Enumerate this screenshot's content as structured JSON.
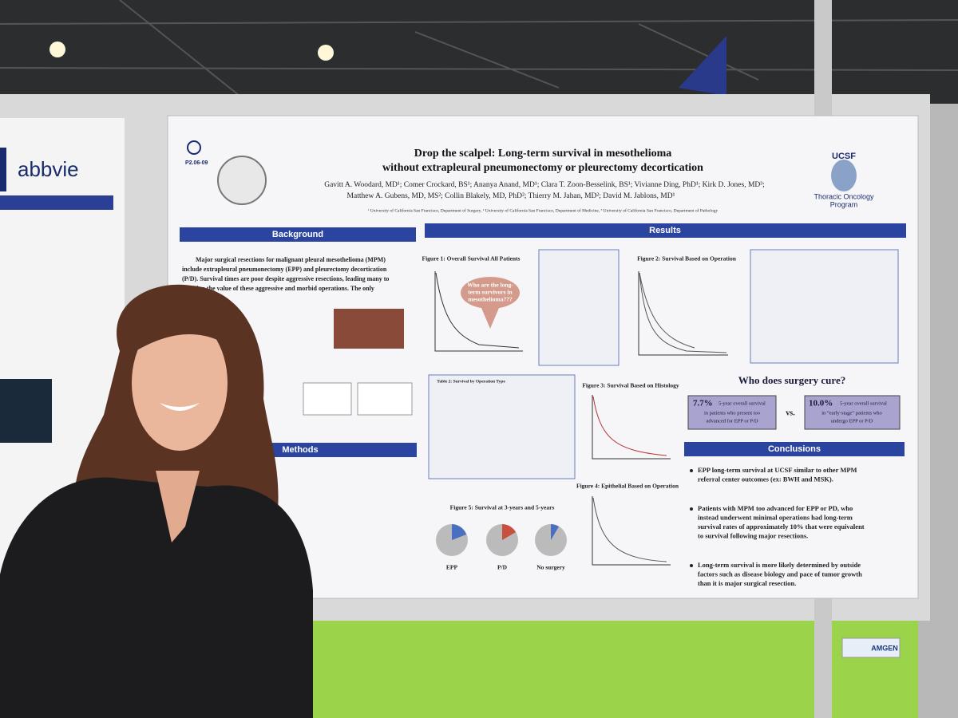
{
  "neighbor_poster": {
    "logo": "abbvie"
  },
  "poster": {
    "code": "P2.06-09",
    "title": [
      "Drop the scalpel: Long-term survival in mesothelioma",
      "without extrapleural pneumonectomy or pleurectomy decortication"
    ],
    "authors": [
      "Gavitt A. Woodard, MD¹; Comer Crockard, BS¹; Ananya Anand, MD¹; Clara T. Zoon-Besselink, BS¹; Vivianne Ding, PhD¹; Kirk D. Jones, MD³;",
      "Matthew A. Gubens, MD, MS²; Collin Blakely, MD, PhD²; Thierry M. Jahan, MD²; David M. Jablons, MD¹"
    ],
    "affiliations": "¹ University of California San Francisco, Department of Surgery, ² University of California San Francisco, Department of Medicine, ³ University of California San Francisco, Department of Pathology",
    "logo": {
      "name": "UCSF",
      "program": [
        "Thoracic Oncology",
        "Program"
      ]
    },
    "background": {
      "heading": "Background",
      "lines": [
        "Major surgical resections for malignant pleural mesothelioma (MPM)",
        "include extrapleural pneumonectomy (EPP) and pleurectomy decortication",
        "(P/D). Survival times are poor despite aggressive resections, leading many to",
        "question the value of these aggressive and morbid operations. The only"
      ]
    },
    "methods": {
      "heading": "Methods"
    },
    "results": {
      "heading": "Results",
      "figure1": "Figure 1: Overall Survival All Patients",
      "callout": [
        "Who are the long-",
        "term survivors in",
        "mesothelioma???"
      ],
      "figure2": "Figure 2: Survival Based on Operation",
      "table2": "Table 2: Survival by Operation Type",
      "figure3": "Figure 3: Survival Based on Histology",
      "figure4": "Figure 4: Epithelial Based on Operation",
      "figure5": "Figure 5: Survival at 3-years and 5-years",
      "pies": [
        "EPP",
        "P/D",
        "No surgery"
      ]
    },
    "cure": {
      "question": "Who does surgery cure?",
      "left": {
        "pct": "7.7%",
        "lines": [
          "5-year overall survival",
          "in patients who present too",
          "advanced for EPP or P/D"
        ]
      },
      "vs": "vs.",
      "right": {
        "pct": "10.0%",
        "lines": [
          "5-year overall survival",
          "in “early-stage” patients who",
          "undergo EPP or P/D"
        ]
      }
    },
    "conclusions": {
      "heading": "Conclusions",
      "bullets": [
        [
          "EPP long-term survival at UCSF similar to other MPM",
          "referral center outcomes (ex: BWH and MSK)."
        ],
        [
          "Patients with MPM too advanced for EPP or PD, who",
          "instead underwent minimal operations had long-term",
          "survival rates of approximately 10% that were equivalent",
          "to survival following major resections."
        ],
        [
          "Long-term survival is more likely determined by outside",
          "factors such as disease biology and pace of tumor growth",
          "than it is major surgical resection."
        ]
      ]
    }
  },
  "sign": "AMGEN"
}
